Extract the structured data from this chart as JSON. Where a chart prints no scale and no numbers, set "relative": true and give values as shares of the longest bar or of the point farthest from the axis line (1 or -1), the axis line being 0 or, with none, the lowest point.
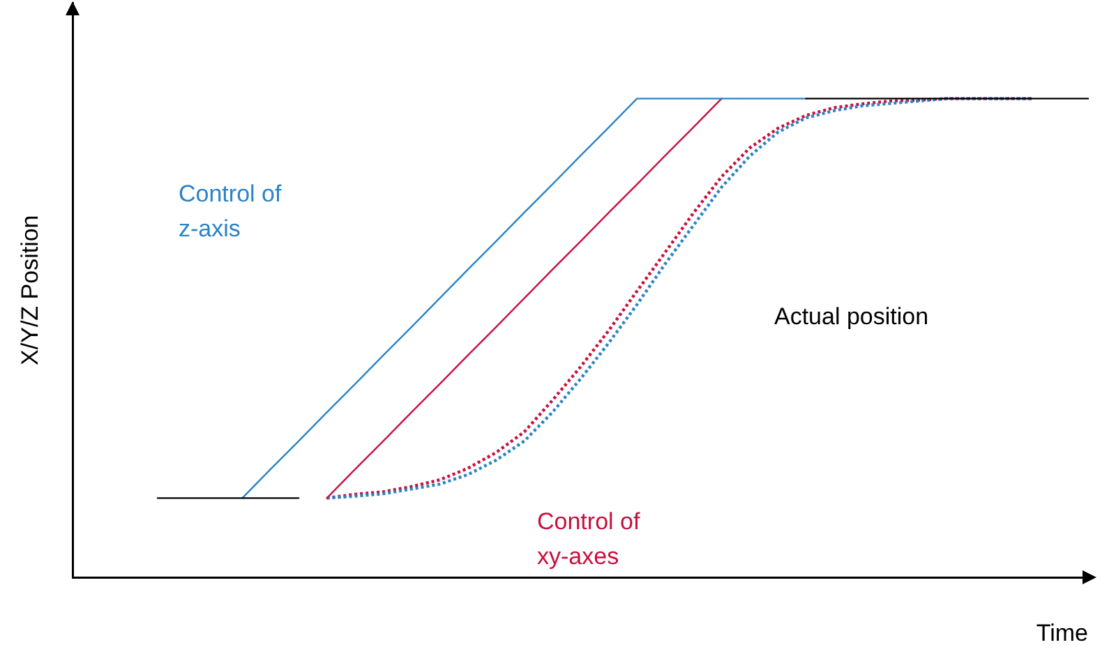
{
  "chart_data": {
    "type": "line",
    "relative": true,
    "ylabel": "X/Y/Z Position",
    "xlabel": "Time",
    "annotations": [
      "Actual position"
    ],
    "grid": false,
    "legend": false,
    "marker": "none",
    "categories": [
      null,
      null,
      null,
      null,
      null,
      null,
      null,
      null,
      null,
      null,
      null,
      null,
      null,
      null,
      null,
      null,
      null,
      null,
      null,
      null,
      null,
      null,
      null,
      null,
      null,
      null,
      null,
      null,
      null,
      null,
      null,
      null,
      null,
      null,
      null,
      null,
      null
    ],
    "series": [
      {
        "color": "#000000",
        "line_style": "solid",
        "values": [
          null,
          null,
          null,
          0.166,
          0.166,
          0.166,
          0.166,
          0.166,
          0.166,
          null,
          null,
          null,
          null,
          null,
          null,
          null,
          null,
          null,
          null,
          null,
          null,
          null,
          null,
          null,
          null,
          null,
          1,
          1,
          1,
          1,
          1,
          1,
          1,
          1,
          1,
          1,
          1
        ]
      },
      {
        "name": "Control of z-axis",
        "color": "#2a84c6",
        "line_style": "solid",
        "values": [
          null,
          null,
          null,
          null,
          null,
          null,
          0.166,
          0.226,
          0.285,
          0.345,
          0.404,
          0.464,
          0.523,
          0.583,
          0.643,
          0.702,
          0.762,
          0.821,
          0.881,
          0.94,
          1,
          1,
          1,
          1,
          1,
          1,
          1,
          null,
          null,
          null,
          null,
          null,
          null,
          null,
          null,
          null,
          null
        ]
      },
      {
        "name": "Control of xy-axes",
        "color": "#c8103e",
        "line_style": "solid",
        "values": [
          null,
          null,
          null,
          null,
          null,
          null,
          null,
          null,
          null,
          0.166,
          0.226,
          0.285,
          0.345,
          0.404,
          0.464,
          0.523,
          0.583,
          0.643,
          0.702,
          0.762,
          0.821,
          0.881,
          0.94,
          1,
          null,
          null,
          null,
          null,
          null,
          null,
          null,
          null,
          null,
          null,
          null,
          null,
          null
        ]
      },
      {
        "color": "#2a84c6",
        "line_style": "dotted",
        "values": [
          null,
          null,
          null,
          null,
          null,
          null,
          null,
          null,
          null,
          0.166,
          0.17,
          0.175,
          0.185,
          0.195,
          0.215,
          0.245,
          0.285,
          0.345,
          0.415,
          0.49,
          0.57,
          0.655,
          0.735,
          0.815,
          0.88,
          0.93,
          0.96,
          0.975,
          0.985,
          0.99,
          0.995,
          1,
          1,
          1,
          1,
          null,
          null
        ]
      },
      {
        "color": "#c8103e",
        "line_style": "dotted",
        "values": [
          null,
          null,
          null,
          null,
          null,
          null,
          null,
          null,
          null,
          0.166,
          0.174,
          0.179,
          0.19,
          0.204,
          0.228,
          0.261,
          0.304,
          0.37,
          0.44,
          0.516,
          0.598,
          0.679,
          0.761,
          0.837,
          0.897,
          0.938,
          0.965,
          0.981,
          0.989,
          0.995,
          0.997,
          1,
          1,
          1,
          1,
          null,
          null
        ]
      }
    ]
  }
}
